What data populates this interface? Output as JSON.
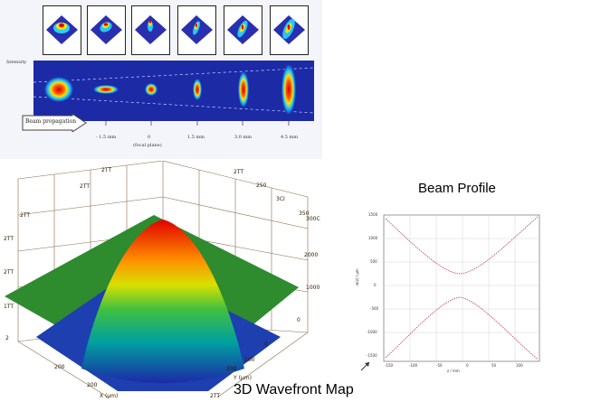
{
  "top": {
    "intensity_label": "Intensity",
    "direction_label": "Beam propagation",
    "center_label": "(focal plane)",
    "positions": [
      "- 1.5 mm",
      "0",
      "1.5 mm",
      "3.0 mm",
      "4.5 mm"
    ],
    "colors": {
      "field": "#1c2aa6",
      "panel": "#f3f5fa"
    }
  },
  "bottom": {
    "wavefront_caption": "3D Wavefront Map",
    "profile_title": "Beam Profile",
    "profile_yticks": [
      "1500",
      "1000",
      "500",
      "0",
      "-500",
      "-1000",
      "-1500"
    ],
    "profile_xticks": [
      "-150",
      "-100",
      "-50",
      "0",
      "50",
      "100"
    ],
    "profile_ylabel": "w(z) / µm",
    "profile_xlabel": "z / mm",
    "surface_left_ticks": [
      "2TT",
      "2TT",
      "2TT",
      "2TT",
      "1TT",
      "2"
    ],
    "surface_right_ticks": [
      "300",
      "250",
      "2000",
      "1000",
      "0"
    ],
    "surface_x_label": "X (µm)",
    "surface_y_label": "Y (µm)"
  }
}
